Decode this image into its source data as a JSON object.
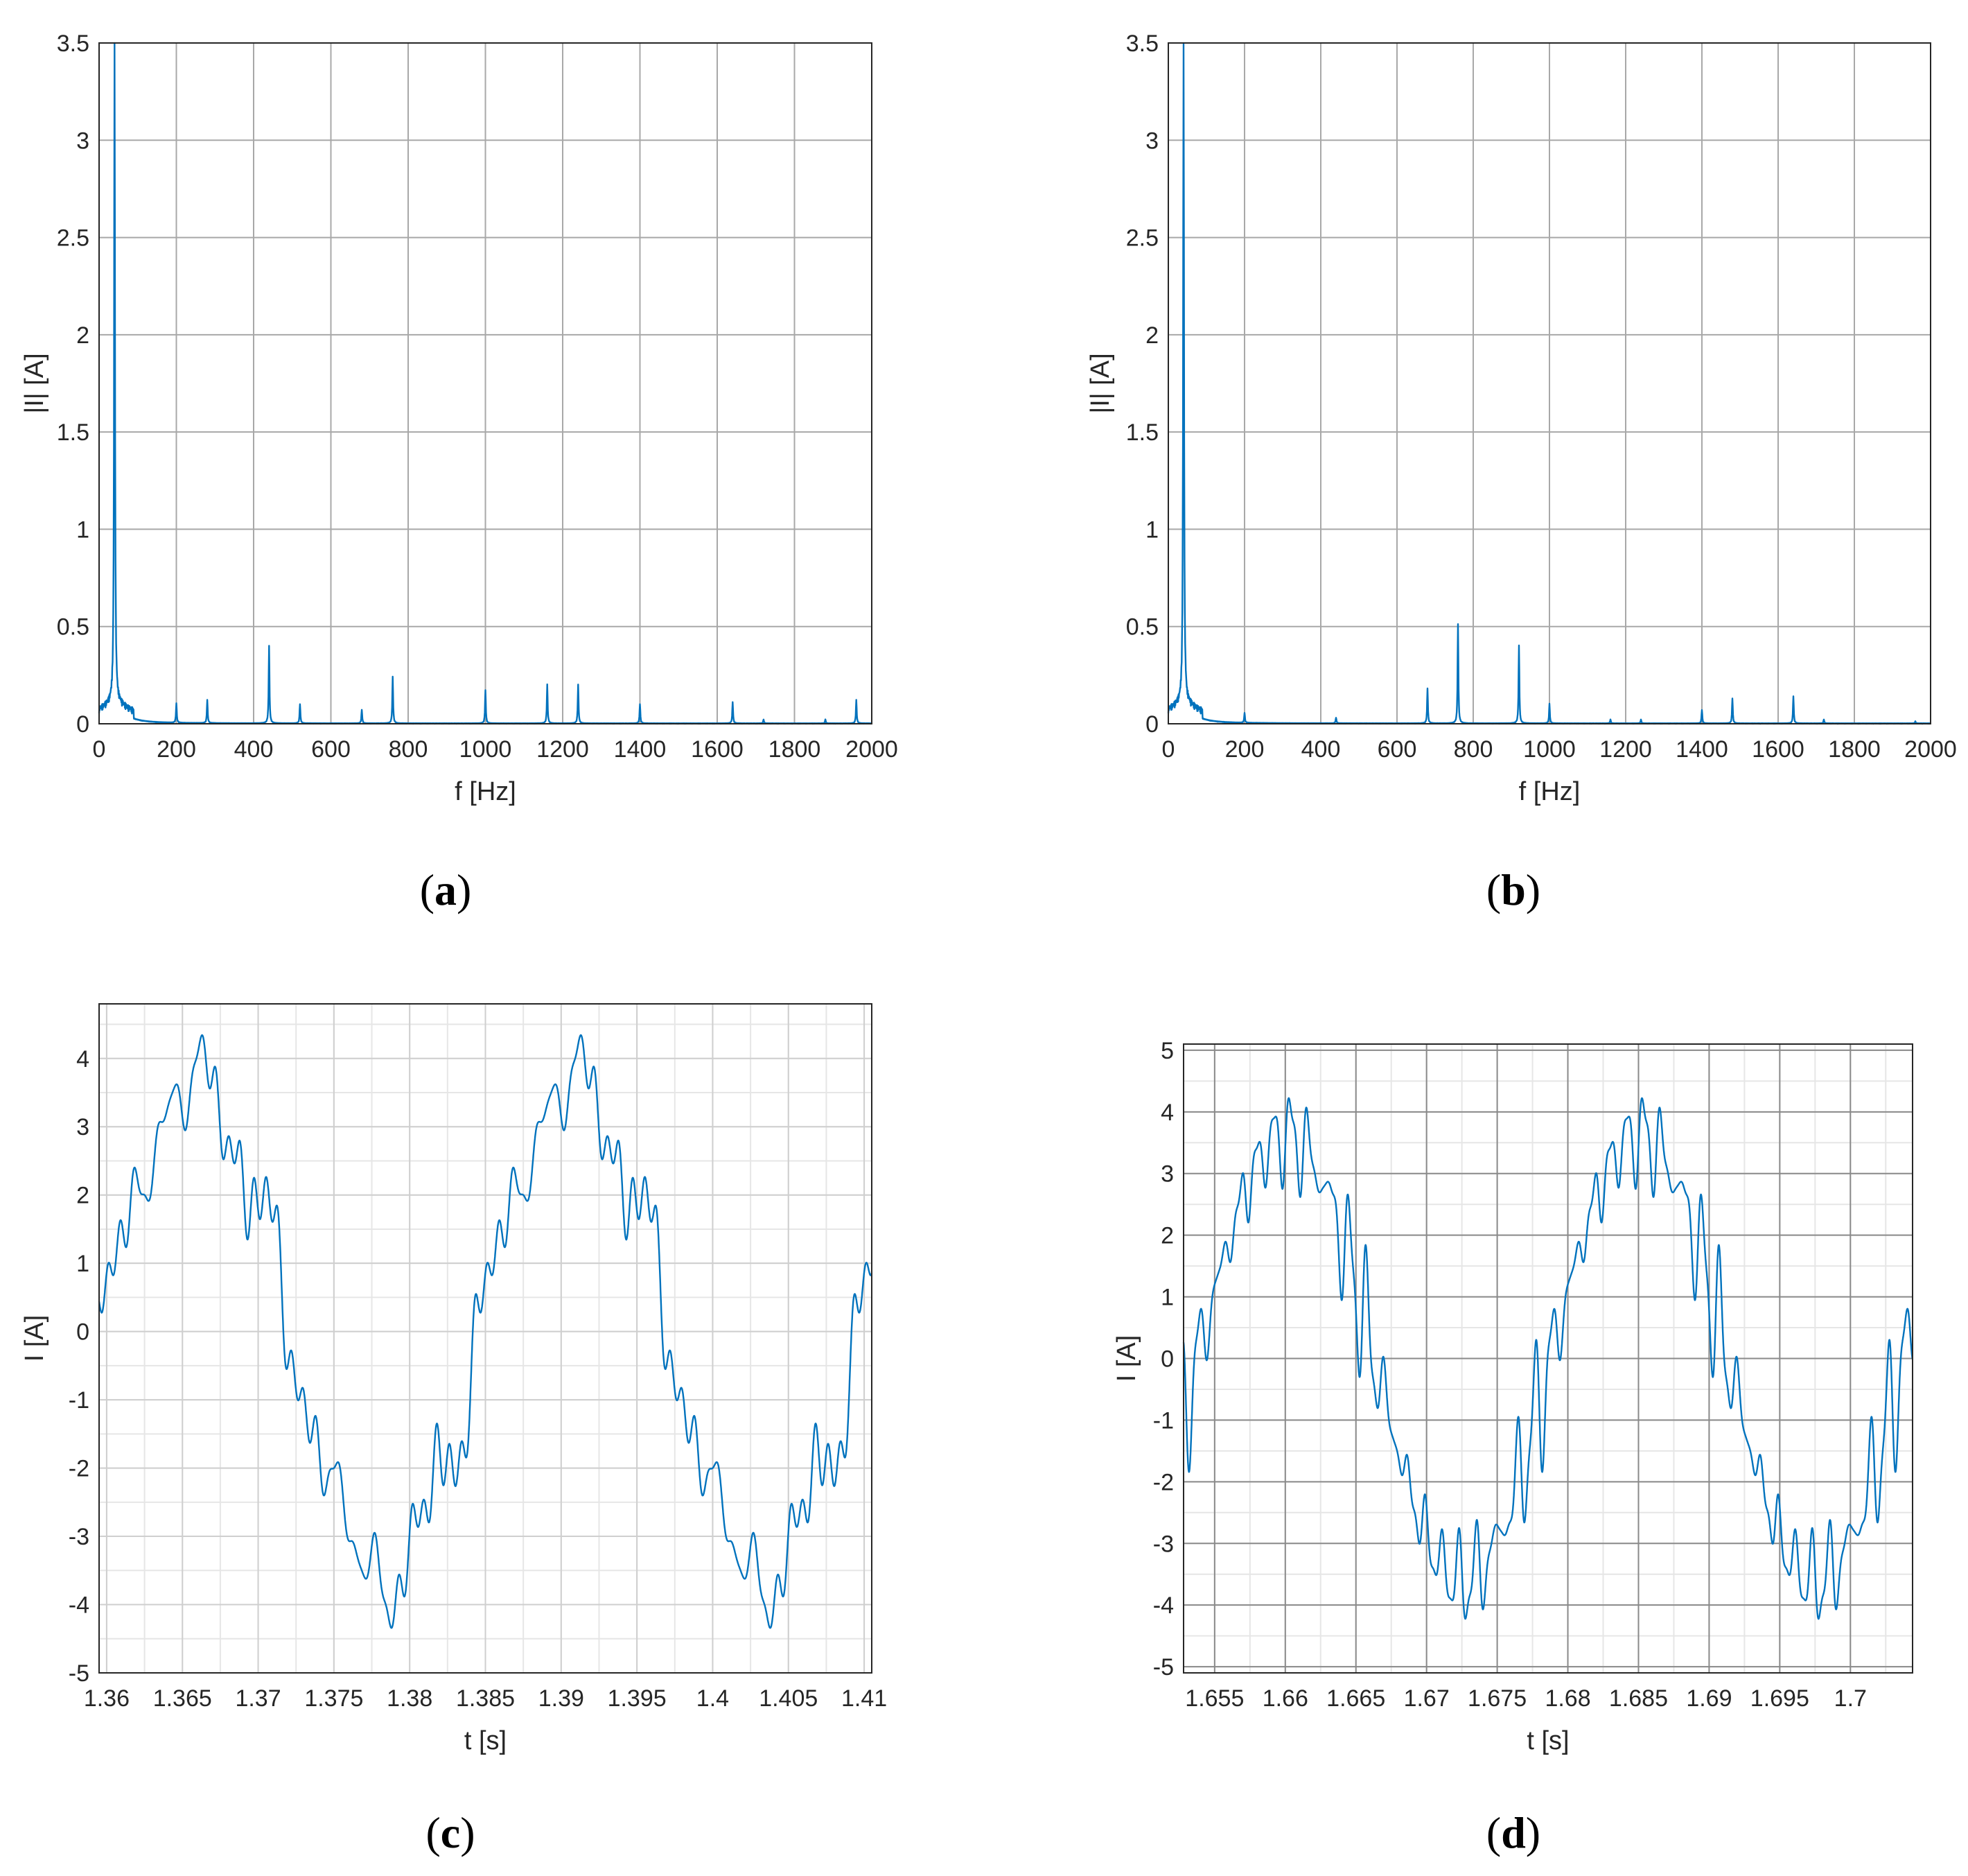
{
  "figure": {
    "panels": [
      {
        "id": "a",
        "label": "a"
      },
      {
        "id": "b",
        "label": "b"
      },
      {
        "id": "c",
        "label": "c"
      },
      {
        "id": "d",
        "label": "d"
      }
    ]
  },
  "chart_data": [
    {
      "id": "a",
      "type": "line",
      "xlabel": "f [Hz]",
      "ylabel": "|I| [A]",
      "xlim": [
        0,
        2000
      ],
      "ylim": [
        0,
        3.5
      ],
      "xticks": [
        0,
        200,
        400,
        600,
        800,
        1000,
        1200,
        1400,
        1600,
        1800,
        2000
      ],
      "yticks": [
        0,
        0.5,
        1,
        1.5,
        2,
        2.5,
        3,
        3.5
      ],
      "grid": true,
      "color": "#0072BD",
      "fundamental": {
        "f": 40,
        "amplitude": 3.5
      },
      "peaks": [
        {
          "f": 200,
          "amplitude": 0.1
        },
        {
          "f": 280,
          "amplitude": 0.12
        },
        {
          "f": 440,
          "amplitude": 0.4
        },
        {
          "f": 520,
          "amplitude": 0.1
        },
        {
          "f": 680,
          "amplitude": 0.07
        },
        {
          "f": 760,
          "amplitude": 0.24
        },
        {
          "f": 1000,
          "amplitude": 0.17
        },
        {
          "f": 1160,
          "amplitude": 0.2
        },
        {
          "f": 1240,
          "amplitude": 0.2
        },
        {
          "f": 1400,
          "amplitude": 0.1
        },
        {
          "f": 1640,
          "amplitude": 0.11
        },
        {
          "f": 1720,
          "amplitude": 0.02
        },
        {
          "f": 1880,
          "amplitude": 0.02
        },
        {
          "f": 1960,
          "amplitude": 0.12
        }
      ]
    },
    {
      "id": "b",
      "type": "line",
      "xlabel": "f [Hz]",
      "ylabel": "|I| [A]",
      "xlim": [
        0,
        2000
      ],
      "ylim": [
        0,
        3.5
      ],
      "xticks": [
        0,
        200,
        400,
        600,
        800,
        1000,
        1200,
        1400,
        1600,
        1800,
        2000
      ],
      "yticks": [
        0,
        0.5,
        1,
        1.5,
        2,
        2.5,
        3,
        3.5
      ],
      "grid": true,
      "color": "#0072BD",
      "fundamental": {
        "f": 40,
        "amplitude": 3.5
      },
      "peaks": [
        {
          "f": 200,
          "amplitude": 0.05
        },
        {
          "f": 440,
          "amplitude": 0.03
        },
        {
          "f": 680,
          "amplitude": 0.18
        },
        {
          "f": 760,
          "amplitude": 0.51
        },
        {
          "f": 920,
          "amplitude": 0.4
        },
        {
          "f": 1000,
          "amplitude": 0.1
        },
        {
          "f": 1160,
          "amplitude": 0.02
        },
        {
          "f": 1240,
          "amplitude": 0.02
        },
        {
          "f": 1400,
          "amplitude": 0.07
        },
        {
          "f": 1480,
          "amplitude": 0.13
        },
        {
          "f": 1640,
          "amplitude": 0.14
        },
        {
          "f": 1720,
          "amplitude": 0.02
        },
        {
          "f": 1960,
          "amplitude": 0.01
        }
      ]
    },
    {
      "id": "c",
      "type": "line",
      "xlabel": "t [s]",
      "ylabel": "I [A]",
      "xlim": [
        1.3595,
        1.4105
      ],
      "ylim": [
        -5,
        4.8
      ],
      "xticks": [
        1.36,
        1.365,
        1.37,
        1.375,
        1.38,
        1.385,
        1.39,
        1.395,
        1.4,
        1.405,
        1.41
      ],
      "xtick_labels": [
        "1.36",
        "1.365",
        "1.37",
        "1.375",
        "1.38",
        "1.385",
        "1.39",
        "1.395",
        "1.4",
        "1.405",
        "1.41"
      ],
      "yticks": [
        -5,
        -4,
        -3,
        -2,
        -1,
        0,
        1,
        2,
        3,
        4
      ],
      "ytick_labels": [
        "-5",
        "-4",
        "-3",
        "-2",
        "-1",
        "0",
        "1",
        "2",
        "3",
        "4"
      ],
      "grid": true,
      "minor_grid": true,
      "color": "#0072BD",
      "waveform": {
        "fundamental_hz": 40,
        "amplitude": 3.6,
        "zero_crossing_s": 1.3596,
        "harmonics": [
          {
            "order": 5,
            "amplitude": 0.35
          },
          {
            "order": 7,
            "amplitude": 0.25
          },
          {
            "order": 11,
            "amplitude": 0.3
          },
          {
            "order": 19,
            "amplitude": 0.22
          },
          {
            "order": 29,
            "amplitude": 0.17
          },
          {
            "order": 31,
            "amplitude": 0.2
          }
        ],
        "peak_max": 4.6,
        "peak_min": -4.55
      }
    },
    {
      "id": "d",
      "type": "line",
      "xlabel": "t [s]",
      "ylabel": "I [A]",
      "xlim": [
        1.6528,
        1.7044
      ],
      "ylim": [
        -5.1,
        5.1
      ],
      "xticks": [
        1.655,
        1.66,
        1.665,
        1.67,
        1.675,
        1.68,
        1.685,
        1.69,
        1.695,
        1.7
      ],
      "xtick_labels": [
        "1.655",
        "1.66",
        "1.665",
        "1.67",
        "1.675",
        "1.68",
        "1.685",
        "1.69",
        "1.695",
        "1.7"
      ],
      "yticks": [
        -5,
        -4,
        -3,
        -2,
        -1,
        0,
        1,
        2,
        3,
        4,
        5
      ],
      "ytick_labels": [
        "-5",
        "-4",
        "-3",
        "-2",
        "-1",
        "0",
        "1",
        "2",
        "3",
        "4",
        "5"
      ],
      "grid": true,
      "minor_grid": true,
      "color": "#0072BD",
      "waveform": {
        "fundamental_hz": 40,
        "amplitude": 3.6,
        "zero_crossing_s": 1.6538,
        "harmonics": [
          {
            "order": 17,
            "amplitude": 0.2
          },
          {
            "order": 19,
            "amplitude": 0.45
          },
          {
            "order": 23,
            "amplitude": 0.35
          },
          {
            "order": 25,
            "amplitude": 0.1
          },
          {
            "order": 35,
            "amplitude": 0.13
          },
          {
            "order": 37,
            "amplitude": 0.12
          },
          {
            "order": 41,
            "amplitude": 0.14
          }
        ],
        "peak_max": 4.6,
        "peak_min": -4.6
      }
    }
  ]
}
